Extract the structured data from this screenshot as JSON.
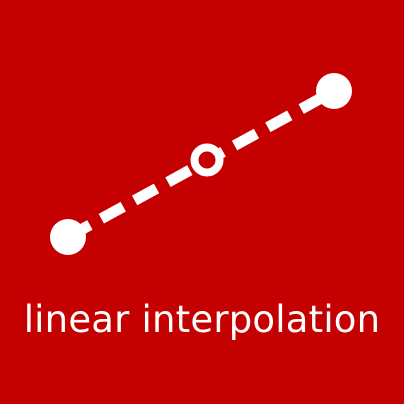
{
  "caption": "linear interpolation",
  "colors": {
    "background": "#c40000",
    "foreground": "#ffffff"
  },
  "icons": {
    "start_point": "filled-circle",
    "interpolated_point": "hollow-circle",
    "end_point": "filled-circle",
    "connector": "dashed-line"
  }
}
